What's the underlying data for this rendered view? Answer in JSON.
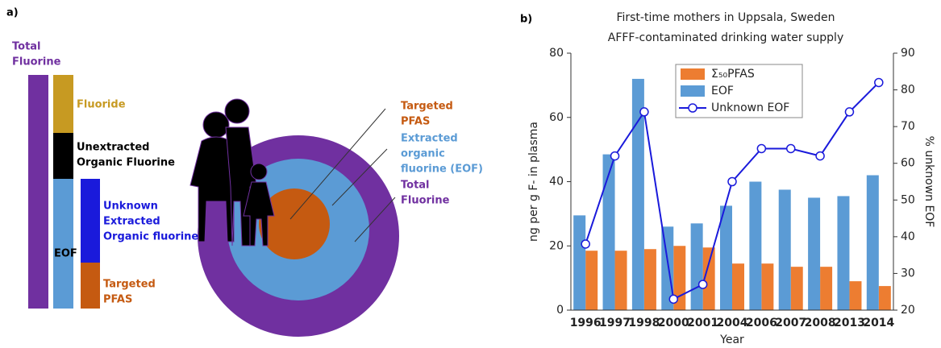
{
  "diagram": {
    "panel_label": "a)",
    "labels": [
      {
        "lines": [
          "Total",
          "Fluorine"
        ],
        "color": "#7030a0"
      },
      {
        "lines": [
          "Fluoride"
        ],
        "color": "#c79a22"
      },
      {
        "lines": [
          "Unextracted",
          "Organic Fluorine"
        ],
        "color": "#000000"
      },
      {
        "lines": [
          "EOF"
        ],
        "color": "#000000"
      },
      {
        "lines": [
          "Unknown",
          "Extracted",
          "Organic fluorine"
        ],
        "color": "#1a1adb"
      },
      {
        "lines": [
          "Targeted",
          "PFAS"
        ],
        "color": "#c55a11"
      },
      {
        "lines": [
          "Targeted",
          "PFAS"
        ],
        "color": "#c55a11"
      },
      {
        "lines": [
          "Extracted",
          "organic",
          "fluorine (EOF)"
        ],
        "color": "#5b9bd5"
      },
      {
        "lines": [
          "Total",
          "Fluorine"
        ],
        "color": "#7030a0"
      }
    ]
  },
  "chart_data": {
    "type": "bar",
    "panel_label": "b)",
    "title": "First-time mothers in Uppsala, Sweden",
    "subtitle": "AFFF-contaminated drinking water supply",
    "x_label": "Year",
    "y_label": "ng per g F- in plasma",
    "y2_label": "% unknown EOF",
    "categories": [
      "1996",
      "1997",
      "1998",
      "2000",
      "2001",
      "2004",
      "2006",
      "2007",
      "2008",
      "2013",
      "2014"
    ],
    "series": [
      {
        "name": "Σ₅₀PFAS",
        "color": "#ed7d31",
        "type": "bar",
        "values": [
          18.5,
          18.5,
          19,
          20,
          19.5,
          14.5,
          14.5,
          13.5,
          13.5,
          9,
          7.5
        ]
      },
      {
        "name": "EOF",
        "color": "#5b9bd5",
        "type": "bar",
        "values": [
          29.5,
          48.5,
          72,
          26,
          27,
          32.5,
          40,
          37.5,
          35,
          35.5,
          42
        ]
      },
      {
        "name": "Unknown EOF",
        "color": "#1a1adb",
        "type": "line",
        "axis": "y2",
        "values": [
          38,
          62,
          74,
          23,
          27,
          55,
          64,
          64,
          62,
          74,
          82
        ]
      }
    ],
    "ylim": [
      0,
      80
    ],
    "yticks": [
      0,
      20,
      40,
      60,
      80
    ],
    "y2lim": [
      20,
      90
    ],
    "y2ticks": [
      20,
      30,
      40,
      50,
      60,
      70,
      80,
      90
    ]
  }
}
